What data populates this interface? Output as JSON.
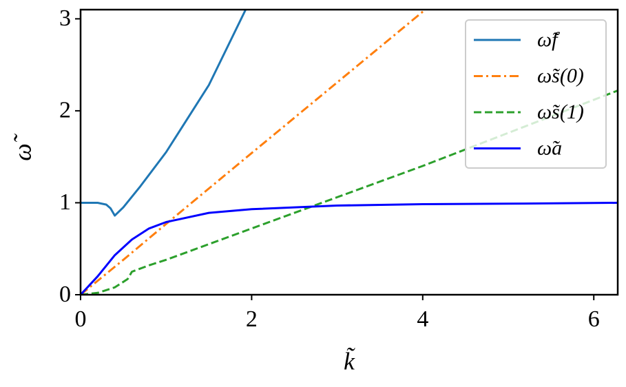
{
  "chart_data": {
    "type": "line",
    "x_label": "k̃",
    "y_label": "ω̃",
    "xlim": [
      0,
      6.28
    ],
    "ylim": [
      0,
      3.1
    ],
    "xticks": [
      0,
      2,
      4,
      6
    ],
    "yticks": [
      0,
      1,
      2,
      3
    ],
    "legend": "upper right",
    "series": [
      {
        "name": "ω̃f",
        "color": "#1f77b4",
        "linestyle": "solid",
        "x": [
          0,
          0.2,
          0.3,
          0.35,
          0.4,
          0.5,
          0.7,
          1.0,
          1.5,
          1.93
        ],
        "values": [
          1,
          1,
          0.98,
          0.94,
          0.86,
          0.95,
          1.18,
          1.55,
          2.28,
          3.1
        ]
      },
      {
        "name": "ω̃s(0)",
        "color": "#ff7f0e",
        "linestyle": "dashdot",
        "x": [
          0,
          0.5,
          1,
          2,
          4.03
        ],
        "values": [
          0,
          0.38,
          0.77,
          1.54,
          3.1
        ]
      },
      {
        "name": "ω̃s(1)",
        "color": "#2ca02c",
        "linestyle": "dashed",
        "x": [
          0,
          0.2,
          0.4,
          0.55,
          0.6,
          0.8,
          1,
          2,
          3,
          4,
          5,
          6.28
        ],
        "values": [
          0,
          0.02,
          0.08,
          0.17,
          0.25,
          0.32,
          0.38,
          0.72,
          1.06,
          1.4,
          1.76,
          2.22
        ]
      },
      {
        "name": "ω̃a",
        "color": "#0000ff",
        "linestyle": "solid",
        "x": [
          0,
          0.2,
          0.4,
          0.6,
          0.8,
          1,
          1.5,
          2,
          3,
          4,
          5,
          6.28
        ],
        "values": [
          0,
          0.2,
          0.43,
          0.6,
          0.72,
          0.79,
          0.89,
          0.93,
          0.97,
          0.985,
          0.99,
          1.0
        ]
      }
    ]
  }
}
